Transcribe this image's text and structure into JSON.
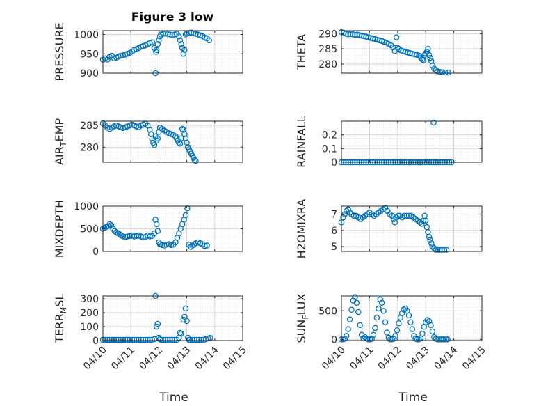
{
  "figure": {
    "title": "Figure 3 low",
    "xlabel": "Time",
    "marker_color": "#0072BD"
  },
  "chart_data": [
    {
      "type": "scatter",
      "title": "Figure 3 low",
      "ylabel": "PRESSURE",
      "ylim": [
        900,
        1010
      ],
      "yticks": [
        900,
        950,
        1000
      ],
      "xlim": [
        0,
        5
      ],
      "xtick_labels": [
        "04/10",
        "04/11",
        "04/12",
        "04/13",
        "04/14",
        "04/15"
      ],
      "show_xticklabels": false,
      "grid": true,
      "x": [
        0.0,
        0.08,
        0.16,
        0.24,
        0.32,
        0.4,
        0.48,
        0.56,
        0.64,
        0.72,
        0.8,
        0.88,
        0.96,
        1.04,
        1.12,
        1.2,
        1.28,
        1.36,
        1.44,
        1.52,
        1.6,
        1.68,
        1.76,
        1.84,
        1.88,
        1.9,
        1.92,
        1.96,
        2.0,
        2.04,
        2.08,
        2.16,
        2.24,
        2.32,
        2.4,
        2.48,
        2.56,
        2.64,
        2.72,
        2.76,
        2.8,
        2.84,
        2.88,
        2.92,
        2.96,
        3.0,
        3.08,
        3.16,
        3.24,
        3.32,
        3.4,
        3.48,
        3.56,
        3.64,
        3.72,
        3.8
      ],
      "values": [
        935,
        938,
        935,
        942,
        945,
        938,
        940,
        943,
        945,
        946,
        948,
        950,
        952,
        956,
        960,
        962,
        965,
        968,
        970,
        972,
        975,
        978,
        980,
        965,
        900,
        955,
        960,
        975,
        985,
        995,
        1000,
        1002,
        1003,
        1001,
        1000,
        998,
        1000,
        1002,
        995,
        985,
        975,
        965,
        950,
        960,
        1000,
        1003,
        1004,
        1005,
        1003,
        1002,
        1000,
        998,
        996,
        992,
        990,
        985
      ]
    },
    {
      "type": "scatter",
      "ylabel": "THETA",
      "ylim": [
        277,
        291
      ],
      "yticks": [
        280,
        285,
        290
      ],
      "xlim": [
        0,
        5
      ],
      "xtick_labels": [
        "04/10",
        "04/11",
        "04/12",
        "04/13",
        "04/14",
        "04/15"
      ],
      "show_xticklabels": false,
      "grid": true,
      "x": [
        0.0,
        0.08,
        0.16,
        0.24,
        0.32,
        0.4,
        0.48,
        0.56,
        0.64,
        0.72,
        0.8,
        0.88,
        0.96,
        1.04,
        1.12,
        1.2,
        1.28,
        1.36,
        1.44,
        1.52,
        1.6,
        1.68,
        1.76,
        1.84,
        1.9,
        1.96,
        2.0,
        2.04,
        2.12,
        2.2,
        2.28,
        2.36,
        2.44,
        2.52,
        2.6,
        2.68,
        2.76,
        2.8,
        2.84,
        2.88,
        2.92,
        2.96,
        3.0,
        3.04,
        3.08,
        3.12,
        3.16,
        3.2,
        3.24,
        3.3,
        3.36,
        3.42,
        3.5,
        3.6,
        3.7,
        3.8
      ],
      "values": [
        290.5,
        290.3,
        290,
        289.8,
        289.9,
        289.8,
        289.6,
        289.7,
        289.5,
        289.3,
        289.2,
        289.0,
        288.8,
        288.6,
        288.4,
        288.2,
        288.0,
        287.8,
        287.6,
        287.3,
        287.0,
        286.6,
        286.2,
        285.5,
        284.3,
        288.8,
        285.3,
        285.0,
        284.5,
        284.2,
        284.0,
        283.8,
        283.6,
        283.4,
        283.2,
        283.0,
        282.8,
        282.5,
        282.0,
        281.5,
        281.2,
        283.0,
        283.5,
        284.0,
        285.0,
        283.0,
        282.0,
        281.0,
        279.5,
        278.5,
        278.0,
        277.6,
        277.4,
        277.3,
        277.2,
        277.2
      ]
    },
    {
      "type": "scatter",
      "ylabel": "AIR_TEMP",
      "ylabel_parts": [
        "AIR",
        "T",
        "EMP"
      ],
      "ylim": [
        276.5,
        286
      ],
      "yticks": [
        280,
        285
      ],
      "xlim": [
        0,
        5
      ],
      "xtick_labels": [
        "04/10",
        "04/11",
        "04/12",
        "04/13",
        "04/14",
        "04/15"
      ],
      "show_xticklabels": false,
      "grid": true,
      "x": [
        0.0,
        0.08,
        0.16,
        0.24,
        0.32,
        0.4,
        0.48,
        0.56,
        0.64,
        0.72,
        0.8,
        0.88,
        0.96,
        1.04,
        1.12,
        1.2,
        1.28,
        1.36,
        1.44,
        1.52,
        1.6,
        1.68,
        1.72,
        1.76,
        1.8,
        1.84,
        1.88,
        1.92,
        1.96,
        2.0,
        2.04,
        2.12,
        2.2,
        2.28,
        2.36,
        2.44,
        2.52,
        2.6,
        2.64,
        2.68,
        2.72,
        2.76,
        2.8,
        2.84,
        2.88,
        2.92,
        2.96,
        3.0,
        3.04,
        3.08,
        3.12,
        3.16,
        3.2,
        3.24,
        3.28,
        3.32
      ],
      "values": [
        285.5,
        285.0,
        284.5,
        284.2,
        284.5,
        284.8,
        285.0,
        284.8,
        284.6,
        284.4,
        284.6,
        284.8,
        285.0,
        285.2,
        285.0,
        284.8,
        284.6,
        285.0,
        285.2,
        285.4,
        285.0,
        284.0,
        283.0,
        282.0,
        281.0,
        280.5,
        282.5,
        281.5,
        282.0,
        283.5,
        284.5,
        284.2,
        283.8,
        283.5,
        283.2,
        283.0,
        282.8,
        282.5,
        282.0,
        281.5,
        281.0,
        280.8,
        282.0,
        284.2,
        284.0,
        283.0,
        282.0,
        281.0,
        280.0,
        279.5,
        279.0,
        278.5,
        278.0,
        277.5,
        277.0,
        276.8
      ]
    },
    {
      "type": "scatter",
      "ylabel": "RAINFALL",
      "ylim": [
        0,
        0.3
      ],
      "yticks": [
        0,
        0.1,
        0.2
      ],
      "xlim": [
        0,
        5
      ],
      "xtick_labels": [
        "04/10",
        "04/11",
        "04/12",
        "04/13",
        "04/14",
        "04/15"
      ],
      "show_xticklabels": false,
      "grid": true,
      "x": [
        0.0,
        0.08,
        0.16,
        0.24,
        0.32,
        0.4,
        0.48,
        0.56,
        0.64,
        0.72,
        0.8,
        0.88,
        0.96,
        1.04,
        1.12,
        1.2,
        1.28,
        1.36,
        1.44,
        1.52,
        1.6,
        1.68,
        1.76,
        1.84,
        1.92,
        2.0,
        2.08,
        2.16,
        2.24,
        2.32,
        2.4,
        2.48,
        2.56,
        2.64,
        2.72,
        2.8,
        2.88,
        2.96,
        3.04,
        3.12,
        3.2,
        3.28,
        3.36,
        3.44,
        3.52,
        3.6,
        3.68,
        3.76,
        3.84,
        3.92,
        3.28
      ],
      "values": [
        0,
        0,
        0,
        0,
        0,
        0,
        0,
        0,
        0,
        0,
        0,
        0,
        0,
        0,
        0,
        0,
        0,
        0,
        0,
        0,
        0,
        0,
        0,
        0,
        0,
        0,
        0,
        0,
        0,
        0,
        0,
        0,
        0,
        0,
        0,
        0,
        0,
        0,
        0,
        0,
        0,
        0,
        0,
        0,
        0,
        0,
        0,
        0,
        0,
        0,
        0.29
      ]
    },
    {
      "type": "scatter",
      "ylabel": "MIXDEPTH",
      "ylim": [
        0,
        1000
      ],
      "yticks": [
        0,
        500,
        1000
      ],
      "xlim": [
        0,
        5
      ],
      "xtick_labels": [
        "04/10",
        "04/11",
        "04/12",
        "04/13",
        "04/14",
        "04/15"
      ],
      "show_xticklabels": false,
      "grid": true,
      "x": [
        0.0,
        0.06,
        0.12,
        0.18,
        0.24,
        0.3,
        0.36,
        0.42,
        0.48,
        0.54,
        0.6,
        0.66,
        0.72,
        0.8,
        0.88,
        0.96,
        1.04,
        1.12,
        1.2,
        1.28,
        1.36,
        1.44,
        1.52,
        1.6,
        1.68,
        1.76,
        1.84,
        1.88,
        1.92,
        1.96,
        2.0,
        2.04,
        2.12,
        2.2,
        2.28,
        2.36,
        2.44,
        2.52,
        2.6,
        2.66,
        2.72,
        2.78,
        2.84,
        2.9,
        2.96,
        3.02,
        3.08,
        3.14,
        3.2,
        3.26,
        3.32,
        3.4,
        3.48,
        3.56,
        3.64,
        3.72
      ],
      "values": [
        500,
        520,
        540,
        560,
        600,
        580,
        500,
        450,
        420,
        400,
        380,
        350,
        330,
        320,
        330,
        340,
        350,
        330,
        340,
        350,
        330,
        310,
        320,
        350,
        330,
        340,
        400,
        700,
        600,
        450,
        200,
        160,
        140,
        130,
        150,
        160,
        140,
        150,
        200,
        300,
        400,
        500,
        600,
        700,
        800,
        950,
        150,
        100,
        130,
        150,
        180,
        200,
        180,
        160,
        120,
        130
      ]
    },
    {
      "type": "scatter",
      "ylabel": "H2OMIXRA",
      "ylim": [
        4.7,
        7.5
      ],
      "yticks": [
        5,
        6,
        7
      ],
      "xlim": [
        0,
        5
      ],
      "xtick_labels": [
        "04/10",
        "04/11",
        "04/12",
        "04/13",
        "04/14",
        "04/15"
      ],
      "show_xticklabels": false,
      "grid": true,
      "x": [
        0.0,
        0.06,
        0.12,
        0.18,
        0.24,
        0.3,
        0.36,
        0.44,
        0.52,
        0.6,
        0.68,
        0.76,
        0.84,
        0.92,
        1.0,
        1.08,
        1.16,
        1.24,
        1.32,
        1.4,
        1.48,
        1.56,
        1.64,
        1.72,
        1.8,
        1.86,
        1.9,
        1.96,
        2.02,
        2.08,
        2.16,
        2.24,
        2.32,
        2.4,
        2.48,
        2.56,
        2.64,
        2.72,
        2.8,
        2.86,
        2.92,
        2.96,
        3.0,
        3.04,
        3.08,
        3.12,
        3.16,
        3.2,
        3.24,
        3.3,
        3.36,
        3.42,
        3.5,
        3.58,
        3.66,
        3.74
      ],
      "values": [
        6.5,
        6.8,
        7.0,
        7.2,
        7.3,
        7.1,
        7.0,
        6.9,
        6.9,
        6.8,
        6.7,
        6.8,
        6.9,
        7.0,
        7.1,
        7.0,
        6.9,
        7.0,
        7.1,
        7.2,
        7.3,
        7.4,
        7.2,
        7.0,
        6.9,
        6.7,
        6.5,
        6.8,
        6.9,
        6.9,
        6.8,
        6.9,
        6.9,
        6.9,
        6.9,
        6.8,
        6.7,
        6.6,
        6.5,
        6.4,
        6.6,
        6.9,
        6.6,
        6.2,
        5.9,
        5.6,
        5.4,
        5.2,
        5.0,
        4.9,
        4.8,
        4.8,
        4.8,
        4.8,
        4.8,
        4.8
      ]
    },
    {
      "type": "scatter",
      "ylabel": "TERR_MSL",
      "ylabel_parts": [
        "TERR",
        "M",
        "SL"
      ],
      "ylim": [
        0,
        320
      ],
      "yticks": [
        0,
        100,
        200,
        300
      ],
      "xlim": [
        0,
        5
      ],
      "xtick_labels": [
        "04/10",
        "04/11",
        "04/12",
        "04/13",
        "04/14",
        "04/15"
      ],
      "show_xticklabels": true,
      "grid": true,
      "x": [
        0.0,
        0.08,
        0.16,
        0.24,
        0.32,
        0.4,
        0.48,
        0.56,
        0.64,
        0.72,
        0.8,
        0.88,
        0.96,
        1.04,
        1.12,
        1.2,
        1.28,
        1.36,
        1.44,
        1.52,
        1.6,
        1.68,
        1.76,
        1.84,
        1.88,
        1.92,
        1.96,
        2.0,
        2.04,
        2.08,
        2.16,
        2.24,
        2.32,
        2.4,
        2.48,
        2.56,
        2.64,
        2.72,
        2.76,
        2.8,
        2.88,
        2.92,
        2.96,
        3.0,
        3.04,
        3.08,
        3.12,
        3.2,
        3.28,
        3.36,
        3.44,
        3.52,
        3.6,
        3.68,
        3.76,
        3.84
      ],
      "values": [
        5,
        5,
        5,
        5,
        5,
        5,
        5,
        5,
        5,
        5,
        5,
        5,
        5,
        5,
        5,
        5,
        5,
        5,
        5,
        5,
        5,
        5,
        5,
        10,
        320,
        100,
        120,
        20,
        10,
        5,
        5,
        5,
        5,
        5,
        5,
        5,
        5,
        20,
        55,
        50,
        150,
        170,
        230,
        140,
        20,
        5,
        5,
        5,
        5,
        5,
        5,
        5,
        5,
        10,
        15,
        20
      ]
    },
    {
      "type": "scatter",
      "ylabel": "SUN_FLUX",
      "ylabel_parts": [
        "SUN",
        "F",
        "LUX"
      ],
      "ylim": [
        -20,
        760
      ],
      "yticks": [
        0,
        500
      ],
      "xlim": [
        0,
        5
      ],
      "xtick_labels": [
        "04/10",
        "04/11",
        "04/12",
        "04/13",
        "04/14",
        "04/15"
      ],
      "show_xticklabels": true,
      "grid": true,
      "x": [
        0.0,
        0.06,
        0.12,
        0.18,
        0.24,
        0.3,
        0.36,
        0.42,
        0.48,
        0.54,
        0.6,
        0.66,
        0.72,
        0.78,
        0.84,
        0.9,
        0.96,
        1.02,
        1.08,
        1.14,
        1.2,
        1.26,
        1.32,
        1.38,
        1.44,
        1.5,
        1.56,
        1.62,
        1.68,
        1.74,
        1.8,
        1.86,
        1.92,
        1.98,
        2.04,
        2.1,
        2.16,
        2.22,
        2.28,
        2.34,
        2.4,
        2.46,
        2.52,
        2.58,
        2.64,
        2.7,
        2.76,
        2.82,
        2.88,
        2.94,
        3.0,
        3.06,
        3.12,
        3.18,
        3.24,
        3.3,
        3.36,
        3.42,
        3.48,
        3.54,
        3.6,
        3.66,
        3.72,
        3.78
      ],
      "values": [
        0,
        0,
        10,
        60,
        180,
        350,
        520,
        680,
        740,
        640,
        480,
        250,
        80,
        20,
        40,
        10,
        0,
        0,
        10,
        80,
        200,
        380,
        540,
        700,
        640,
        500,
        300,
        120,
        30,
        0,
        0,
        10,
        60,
        160,
        280,
        380,
        460,
        520,
        540,
        500,
        420,
        300,
        180,
        60,
        10,
        0,
        0,
        20,
        100,
        220,
        300,
        340,
        320,
        250,
        140,
        40,
        10,
        0,
        0,
        0,
        0,
        0,
        0,
        0
      ]
    }
  ]
}
